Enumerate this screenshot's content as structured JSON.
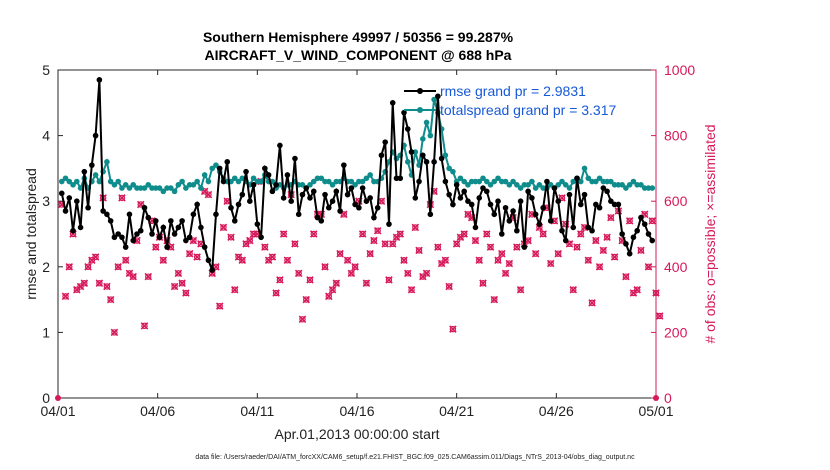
{
  "chart_data": {
    "type": "line",
    "title_line1": "Southern Hemisphere 49997 / 50356 = 99.287%",
    "title_line2": "AIRCRAFT_V_WIND_COMPONENT @ 688 hPa",
    "xlabel": "Apr.01,2013 00:00:00 start",
    "ylabel_left": "rmse and totalspread",
    "ylabel_right": "# of obs: o=possible; ×=assimilated",
    "footer": "data file: /Users/raeder/DAI/ATM_forcXX/CAM6_setup/f.e21.FHIST_BGC.f09_025.CAM6assim.011/Diags_NTrS_2013-04/obs_diag_output.nc",
    "xlim": [
      0,
      30
    ],
    "ylim_left": [
      0,
      5
    ],
    "ylim_right": [
      0,
      1000
    ],
    "x_tick_positions": [
      0,
      5,
      10,
      15,
      20,
      25,
      30
    ],
    "x_tick_labels": [
      "04/01",
      "04/06",
      "04/11",
      "04/16",
      "04/21",
      "04/26",
      "05/01"
    ],
    "y_left_ticks": [
      0,
      1,
      2,
      3,
      4,
      5
    ],
    "y_right_ticks": [
      0,
      200,
      400,
      600,
      800,
      1000
    ],
    "colors": {
      "rmse": "#000000",
      "spread": "#0f8c8c",
      "obs": "#d6195b",
      "legend_text": "#1659d6"
    },
    "series": [
      {
        "name": "rmse grand pr = 2.9831",
        "axis": "left",
        "values": [
          3.12,
          2.85,
          3.05,
          2.55,
          3.0,
          2.6,
          3.45,
          2.9,
          3.55,
          4.0,
          4.85,
          2.85,
          2.8,
          2.7,
          2.45,
          2.5,
          2.45,
          2.3,
          2.8,
          2.4,
          2.5,
          2.55,
          2.9,
          2.75,
          2.5,
          2.7,
          2.45,
          2.6,
          2.3,
          2.7,
          2.5,
          2.6,
          2.7,
          2.4,
          2.45,
          2.8,
          2.95,
          2.6,
          2.3,
          2.1,
          1.95,
          2.8,
          3.5,
          3.3,
          3.6,
          2.9,
          2.7,
          2.95,
          3.1,
          3.45,
          3.0,
          3.25,
          2.65,
          2.45,
          3.5,
          3.4,
          3.15,
          3.25,
          3.85,
          3.05,
          3.4,
          3.0,
          3.65,
          2.8,
          3.1,
          3.2,
          3.05,
          3.15,
          2.75,
          2.7,
          3.1,
          2.9,
          3.0,
          3.15,
          2.85,
          3.55,
          3.1,
          3.2,
          2.95,
          2.9,
          3.2,
          3.0,
          3.05,
          2.75,
          2.9,
          3.7,
          3.9,
          2.65,
          4.5,
          3.35,
          3.35,
          4.35,
          4.1,
          3.75,
          3.05,
          3.3,
          3.7,
          3.6,
          2.8,
          3.6,
          4.6,
          3.65,
          3.3,
          3.1,
          2.95,
          3.25,
          3.05,
          3.15,
          3.0,
          2.95,
          2.6,
          3.05,
          3.2,
          3.15,
          2.95,
          2.8,
          3.0,
          2.5,
          2.9,
          2.7,
          2.85,
          2.55,
          3.0,
          2.3,
          3.15,
          3.05,
          2.8,
          2.65,
          2.9,
          3.3,
          2.7,
          3.2,
          3.0,
          2.55,
          2.4,
          3.1,
          2.6,
          3.35,
          2.95,
          3.1,
          2.6,
          2.55,
          2.95,
          2.9,
          3.2,
          3.15,
          3.0,
          2.95,
          2.95,
          2.5,
          2.35,
          2.2,
          2.45,
          2.55,
          2.75,
          2.65,
          2.5,
          2.4
        ]
      },
      {
        "name": "totalspread grand pr = 3.317",
        "axis": "left",
        "values": [
          3.3,
          3.35,
          3.3,
          3.25,
          3.3,
          3.2,
          3.35,
          3.2,
          3.3,
          3.4,
          3.3,
          3.45,
          3.6,
          3.3,
          3.25,
          3.3,
          3.2,
          3.25,
          3.2,
          3.25,
          3.2,
          3.2,
          3.2,
          3.25,
          3.2,
          3.2,
          3.2,
          3.15,
          3.2,
          3.2,
          3.15,
          3.25,
          3.3,
          3.2,
          3.25,
          3.25,
          3.3,
          3.2,
          3.4,
          3.3,
          3.5,
          3.55,
          3.45,
          3.35,
          3.3,
          3.3,
          3.35,
          3.3,
          3.35,
          3.3,
          3.25,
          3.35,
          3.3,
          3.3,
          3.4,
          3.3,
          3.3,
          3.2,
          3.25,
          3.2,
          3.25,
          3.25,
          3.3,
          3.25,
          3.25,
          3.2,
          3.25,
          3.3,
          3.35,
          3.35,
          3.3,
          3.3,
          3.25,
          3.3,
          3.3,
          3.35,
          3.3,
          3.3,
          3.25,
          3.3,
          3.3,
          3.35,
          3.4,
          3.3,
          3.3,
          3.35,
          3.45,
          3.6,
          3.75,
          3.65,
          3.7,
          3.85,
          3.6,
          3.4,
          3.75,
          3.55,
          3.95,
          4.2,
          4.0,
          4.55,
          4.35,
          4.1,
          3.7,
          3.5,
          3.45,
          3.3,
          3.35,
          3.3,
          3.25,
          3.3,
          3.3,
          3.3,
          3.35,
          3.3,
          3.25,
          3.3,
          3.35,
          3.3,
          3.3,
          3.25,
          3.3,
          3.25,
          3.2,
          3.25,
          3.25,
          3.3,
          3.2,
          3.25,
          3.2,
          3.2,
          3.25,
          3.2,
          3.25,
          3.3,
          3.25,
          3.2,
          3.3,
          3.35,
          3.3,
          3.5,
          3.35,
          3.3,
          3.3,
          3.35,
          3.3,
          3.3,
          3.3,
          3.25,
          3.25,
          3.25,
          3.2,
          3.25,
          3.3,
          3.25,
          3.25,
          3.2,
          3.2,
          3.2
        ]
      },
      {
        "name": "# of obs possible/assimilated",
        "axis": "right",
        "values": [
          590,
          310,
          400,
          500,
          330,
          340,
          350,
          400,
          420,
          430,
          350,
          610,
          340,
          300,
          200,
          400,
          610,
          420,
          380,
          370,
          480,
          590,
          220,
          370,
          540,
          460,
          490,
          420,
          480,
          460,
          340,
          380,
          350,
          320,
          440,
          480,
          430,
          470,
          630,
          620,
          380,
          400,
          280,
          520,
          600,
          490,
          330,
          430,
          420,
          470,
          480,
          500,
          500,
          660,
          460,
          420,
          430,
          320,
          360,
          500,
          420,
          620,
          470,
          380,
          240,
          300,
          360,
          500,
          560,
          560,
          400,
          310,
          330,
          350,
          440,
          560,
          420,
          380,
          400,
          600,
          500,
          350,
          440,
          480,
          510,
          600,
          470,
          360,
          470,
          490,
          500,
          420,
          380,
          330,
          520,
          450,
          370,
          380,
          590,
          630,
          460,
          410,
          420,
          340,
          210,
          470,
          490,
          500,
          560,
          550,
          480,
          420,
          350,
          500,
          460,
          300,
          420,
          440,
          380,
          410,
          550,
          460,
          330,
          470,
          480,
          560,
          440,
          520,
          500,
          580,
          410,
          540,
          440,
          610,
          530,
          470,
          330,
          460,
          500,
          520,
          420,
          290,
          480,
          400,
          450,
          490,
          550,
          430,
          570,
          480,
          370,
          540,
          320,
          330,
          450,
          560,
          400,
          540,
          320,
          250
        ]
      }
    ]
  }
}
